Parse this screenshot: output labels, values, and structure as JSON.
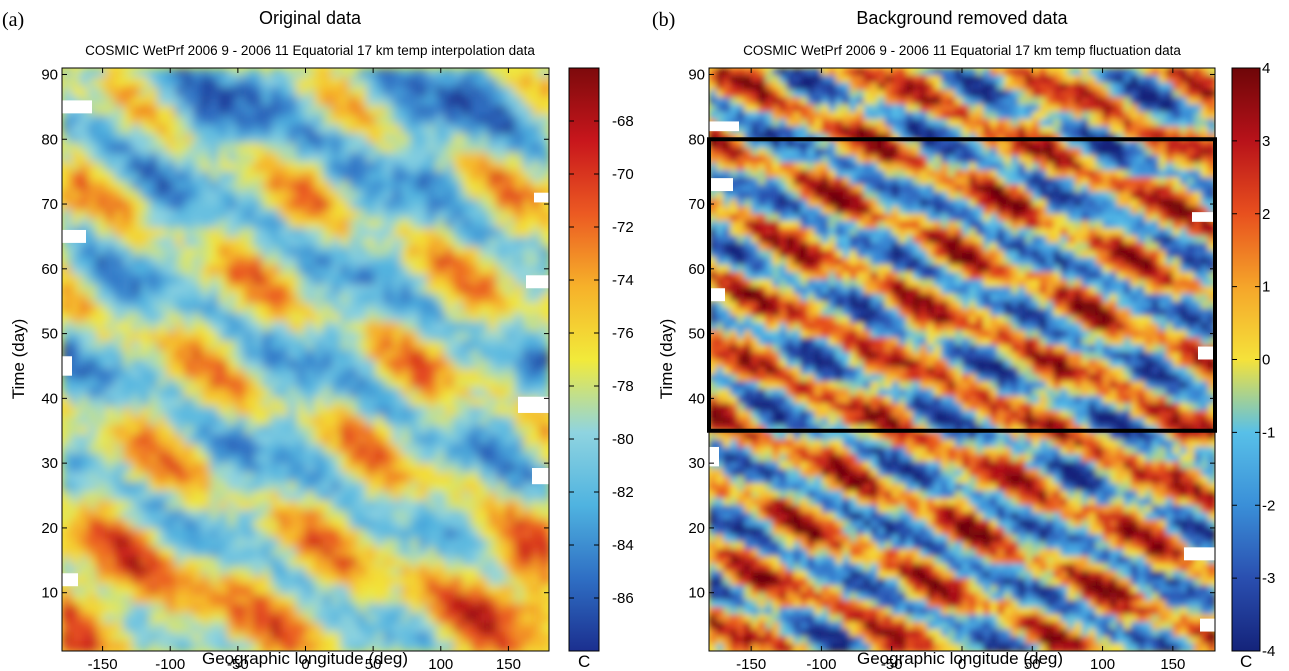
{
  "chart_data": [
    {
      "type": "heatmap",
      "panel_label": "(a)",
      "title": "Original data",
      "subtitle": "COSMIC WetPrf 2006 9 - 2006 11 Equatorial 17 km temp interpolation data",
      "xlabel": "Geographic longitude (deg)",
      "ylabel": "Time (day)",
      "xlim": [
        -180,
        180
      ],
      "ylim": [
        1,
        91
      ],
      "x_ticks": [
        -150,
        -100,
        -50,
        0,
        50,
        100,
        150
      ],
      "y_ticks": [
        10,
        20,
        30,
        40,
        50,
        60,
        70,
        80,
        90
      ],
      "colorbar": {
        "range": [
          -88,
          -66
        ],
        "ticks": [
          -68,
          -70,
          -72,
          -74,
          -76,
          -78,
          -80,
          -82,
          -84,
          -86
        ],
        "unit": "C",
        "colormap": [
          "#1b2f8f",
          "#2f6fc4",
          "#4fb3e0",
          "#8fd4e0",
          "#f2ea3a",
          "#f6b12a",
          "#ec5a22",
          "#c8161c",
          "#7d0a0c"
        ]
      },
      "features": "Bands of cool (blue) and warm (yellow/red) temperature sloping upward to the right; warmest values near days 5-20 and around longitudes 100-150"
    },
    {
      "type": "heatmap",
      "panel_label": "(b)",
      "title": "Background removed data",
      "subtitle": "COSMIC WetPrf 2006 9 - 2006 11 Equatorial 17 km temp fluctuation data",
      "xlabel": "Geographic longitude (deg)",
      "ylabel": "Time (day)",
      "xlim": [
        -180,
        180
      ],
      "ylim": [
        1,
        91
      ],
      "x_ticks": [
        -150,
        -100,
        -50,
        0,
        50,
        100,
        150
      ],
      "y_ticks": [
        10,
        20,
        30,
        40,
        50,
        60,
        70,
        80,
        90
      ],
      "colorbar": {
        "range": [
          -4,
          4
        ],
        "ticks": [
          4,
          3,
          2,
          1,
          0,
          -1,
          -2,
          -3,
          -4
        ],
        "unit": "C",
        "colormap": [
          "#14237a",
          "#2a4fb0",
          "#3a8fd8",
          "#58c0e8",
          "#f5e23a",
          "#f5a52a",
          "#e8501e",
          "#b8121a",
          "#6e0608"
        ]
      },
      "highlight_box": {
        "x": [
          -180,
          180
        ],
        "y": [
          35,
          80
        ]
      },
      "features": "Alternating positive (red) and negative (blue) fluctuation bands sloping upward to the right (eastward propagation)"
    }
  ]
}
